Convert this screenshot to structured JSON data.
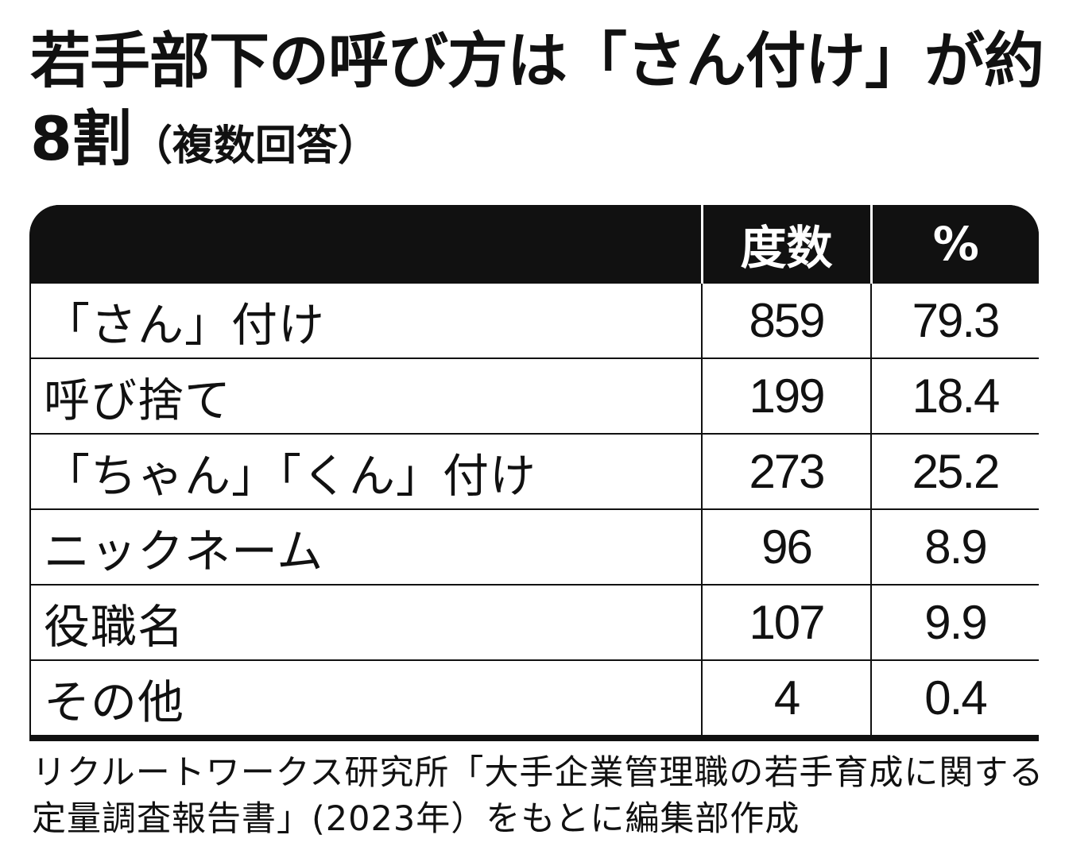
{
  "chart_data": {
    "type": "table",
    "title": "若手部下の呼び方は「さん付け」が約8割",
    "subtitle": "（複数回答）",
    "columns": [
      "",
      "度数",
      "%"
    ],
    "rows": [
      {
        "label": "「さん」付け",
        "count": "859",
        "percent": "79.3"
      },
      {
        "label": "呼び捨て",
        "count": "199",
        "percent": "18.4"
      },
      {
        "label": "「ちゃん」「くん」付け",
        "count": "273",
        "percent": "25.2"
      },
      {
        "label": "ニックネーム",
        "count": "96",
        "percent": "8.9"
      },
      {
        "label": "役職名",
        "count": "107",
        "percent": "9.9"
      },
      {
        "label": "その他",
        "count": "4",
        "percent": "0.4"
      }
    ],
    "source": "リクルートワークス研究所「大手企業管理職の若手育成に関する定量調査報告書」(2023年）をもとに編集部作成"
  },
  "colors": {
    "header_background": "#111111",
    "header_text": "#ffffff",
    "border": "#111111",
    "text": "#111111"
  }
}
